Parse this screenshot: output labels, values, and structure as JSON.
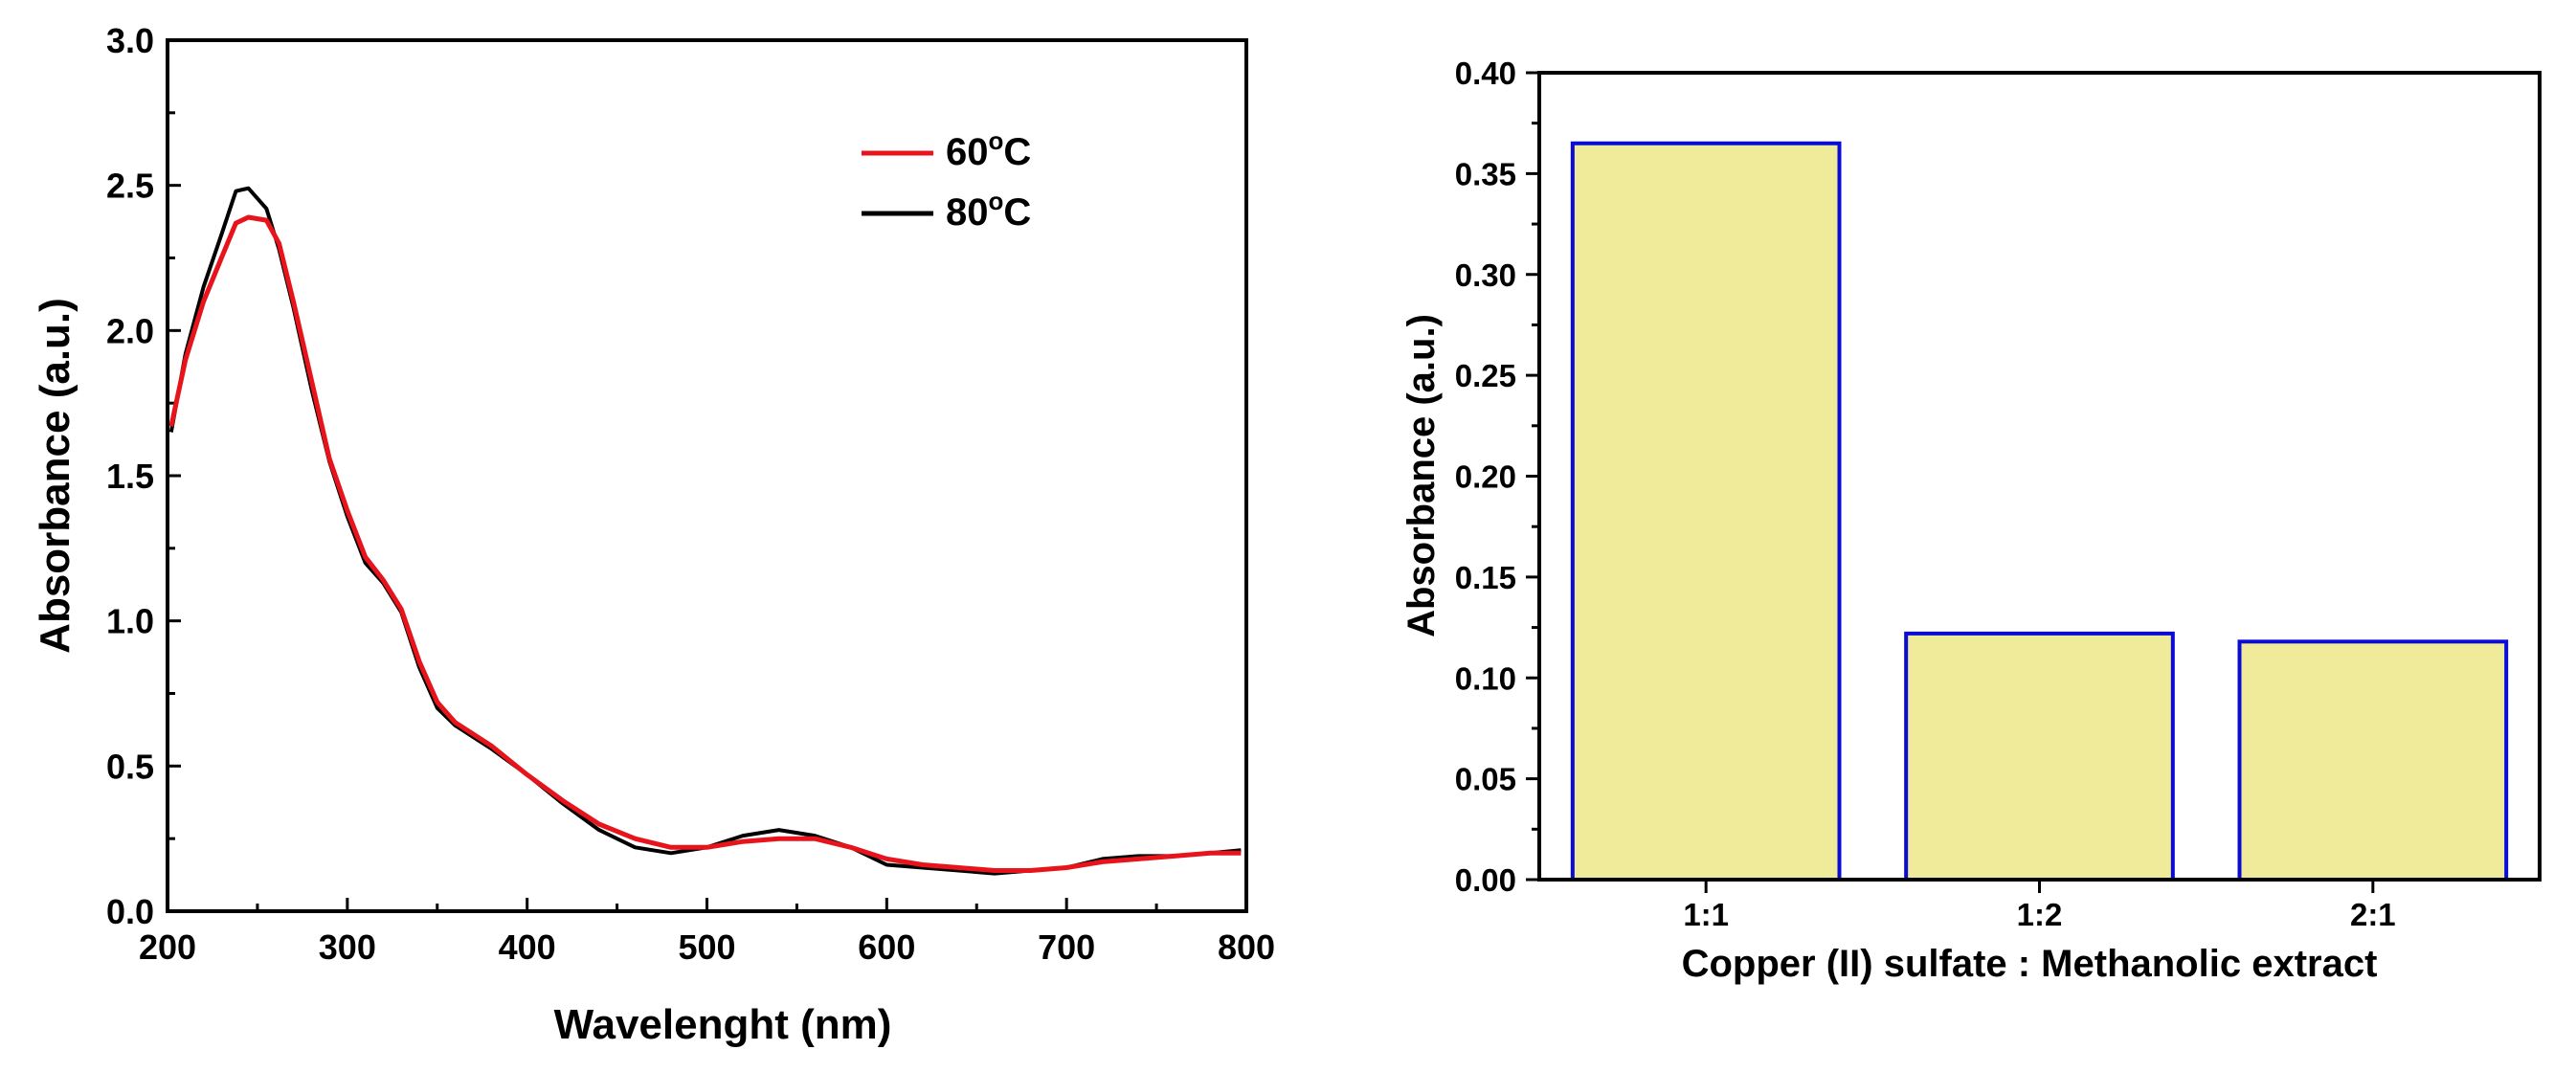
{
  "chart_data": [
    {
      "type": "line",
      "xlabel": "Wavelenght (nm)",
      "ylabel": "Absorbance (a.u.)",
      "xlim": [
        200,
        800
      ],
      "ylim": [
        0.0,
        3.0
      ],
      "xticks": [
        "200",
        "300",
        "400",
        "500",
        "600",
        "700",
        "800"
      ],
      "yticks": [
        "0.0",
        "0.5",
        "1.0",
        "1.5",
        "2.0",
        "2.5",
        "3.0"
      ],
      "legend_position": "top-right",
      "series": [
        {
          "name": "60",
          "name_sup": "o",
          "name_suffix": "C",
          "color": "#e8141b",
          "x": [
            202,
            210,
            220,
            230,
            238,
            245,
            255,
            262,
            270,
            280,
            290,
            300,
            310,
            320,
            330,
            340,
            350,
            360,
            380,
            400,
            420,
            440,
            460,
            480,
            500,
            520,
            540,
            560,
            580,
            600,
            620,
            640,
            660,
            680,
            700,
            720,
            740,
            760,
            780,
            797
          ],
          "y": [
            1.67,
            1.9,
            2.1,
            2.25,
            2.37,
            2.39,
            2.38,
            2.3,
            2.1,
            1.83,
            1.56,
            1.38,
            1.22,
            1.14,
            1.04,
            0.86,
            0.72,
            0.65,
            0.57,
            0.47,
            0.38,
            0.3,
            0.25,
            0.22,
            0.22,
            0.24,
            0.25,
            0.25,
            0.22,
            0.18,
            0.16,
            0.15,
            0.14,
            0.14,
            0.15,
            0.17,
            0.18,
            0.19,
            0.2,
            0.2
          ]
        },
        {
          "name": "80",
          "name_sup": "o",
          "name_suffix": "C",
          "color": "#000000",
          "x": [
            202,
            210,
            220,
            230,
            238,
            245,
            255,
            262,
            270,
            280,
            290,
            300,
            310,
            320,
            330,
            340,
            350,
            360,
            380,
            400,
            420,
            440,
            460,
            480,
            500,
            520,
            540,
            560,
            580,
            600,
            620,
            640,
            660,
            680,
            700,
            720,
            740,
            760,
            780,
            797
          ],
          "y": [
            1.65,
            1.92,
            2.15,
            2.33,
            2.48,
            2.49,
            2.42,
            2.28,
            2.08,
            1.8,
            1.55,
            1.36,
            1.2,
            1.13,
            1.03,
            0.84,
            0.7,
            0.64,
            0.56,
            0.47,
            0.37,
            0.28,
            0.22,
            0.2,
            0.22,
            0.26,
            0.28,
            0.26,
            0.22,
            0.16,
            0.15,
            0.14,
            0.13,
            0.14,
            0.15,
            0.18,
            0.19,
            0.19,
            0.2,
            0.21
          ]
        }
      ]
    },
    {
      "type": "bar",
      "xlabel": "Copper (II) sulfate : Methanolic extract",
      "ylabel": "Absorbance (a.u.)",
      "ylim": [
        0.0,
        0.4
      ],
      "yticks": [
        "0.00",
        "0.05",
        "0.10",
        "0.15",
        "0.20",
        "0.25",
        "0.30",
        "0.35",
        "0.40"
      ],
      "categories": [
        "1:1",
        "1:2",
        "2:1"
      ],
      "values": [
        0.365,
        0.122,
        0.118
      ],
      "bar_fill": "#f0eb9a",
      "bar_stroke": "#0b0bd6"
    }
  ]
}
